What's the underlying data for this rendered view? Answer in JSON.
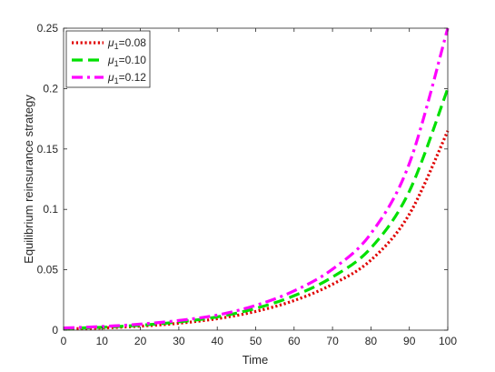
{
  "chart_data": {
    "type": "line",
    "xlabel": "Time",
    "ylabel": "Equilibrium reinsurance strategy",
    "xlim": [
      0,
      100
    ],
    "ylim": [
      0,
      0.25
    ],
    "x_ticks": [
      "0",
      "10",
      "20",
      "30",
      "40",
      "50",
      "60",
      "70",
      "80",
      "90",
      "100"
    ],
    "y_ticks": [
      "0",
      "0.05",
      "0.1",
      "0.15",
      "0.2",
      "0.25"
    ],
    "grid": false,
    "legend_position": "top-left",
    "x": [
      0,
      10,
      20,
      30,
      40,
      50,
      60,
      70,
      80,
      90,
      100
    ],
    "series": [
      {
        "name_symbol": "μ",
        "name_sub": "1",
        "name_rest": "=0.08",
        "color": "#e00000",
        "style": "dotted",
        "values": [
          0.001,
          0.0018,
          0.0033,
          0.0057,
          0.0095,
          0.0155,
          0.0245,
          0.038,
          0.058,
          0.096,
          0.165
        ]
      },
      {
        "name_symbol": "μ",
        "name_sub": "1",
        "name_rest": "=0.10",
        "color": "#00e000",
        "style": "dashed",
        "values": [
          0.0014,
          0.0024,
          0.0041,
          0.0068,
          0.011,
          0.018,
          0.0285,
          0.044,
          0.068,
          0.115,
          0.2
        ]
      },
      {
        "name_symbol": "μ",
        "name_sub": "1",
        "name_rest": "=0.12",
        "color": "#ff00ff",
        "style": "dashdot",
        "values": [
          0.0018,
          0.003,
          0.005,
          0.008,
          0.0125,
          0.0205,
          0.0325,
          0.0505,
          0.08,
          0.138,
          0.25
        ]
      }
    ]
  }
}
